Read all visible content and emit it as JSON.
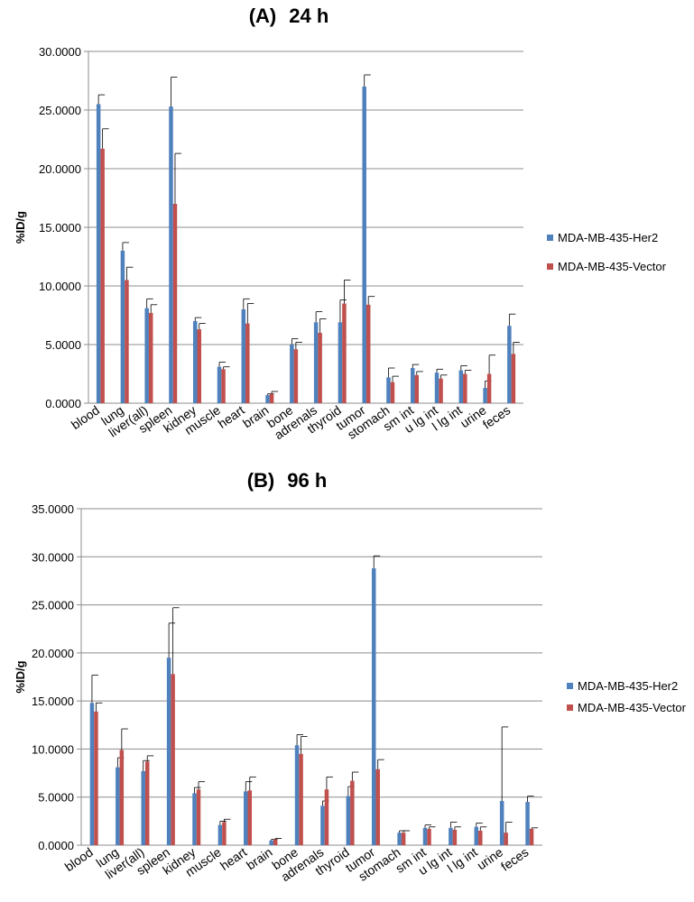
{
  "chart_data": [
    {
      "type": "bar",
      "title_label": "(A)",
      "title_time": "24 h",
      "ylabel": "%ID/g",
      "xlabel": "",
      "ylim": [
        0,
        30
      ],
      "yticks": [
        "0.0000",
        "5.0000",
        "10.0000",
        "15.0000",
        "20.0000",
        "25.0000",
        "30.0000"
      ],
      "grid": true,
      "legend_position": "right",
      "categories": [
        "blood",
        "lung",
        "liver(all)",
        "spleen",
        "kidney",
        "muscle",
        "heart",
        "brain",
        "bone",
        "adrenals",
        "thyroid",
        "tumor",
        "stomach",
        "sm int",
        "u lg int",
        "l lg int",
        "urine",
        "feces"
      ],
      "series": [
        {
          "name": "MDA-MB-435-Her2",
          "color": "#4F81BD",
          "values": [
            25.5,
            13.0,
            8.1,
            25.3,
            7.0,
            3.1,
            8.0,
            0.7,
            5.0,
            6.9,
            6.9,
            27.0,
            2.2,
            3.0,
            2.6,
            2.8,
            1.3,
            6.6
          ],
          "errors": [
            0.8,
            0.7,
            0.8,
            2.5,
            0.3,
            0.4,
            0.9,
            0.1,
            0.5,
            0.9,
            1.9,
            1.0,
            0.8,
            0.3,
            0.3,
            0.4,
            0.6,
            1.0
          ]
        },
        {
          "name": "MDA-MB-435-Vector",
          "color": "#C0504D",
          "values": [
            21.7,
            10.5,
            7.7,
            17.0,
            6.3,
            2.9,
            6.8,
            0.8,
            4.6,
            6.0,
            8.5,
            8.4,
            1.8,
            2.4,
            2.1,
            2.5,
            2.5,
            4.2
          ],
          "errors": [
            1.7,
            1.1,
            0.7,
            4.3,
            0.5,
            0.2,
            1.7,
            0.2,
            0.6,
            1.2,
            2.0,
            0.7,
            0.5,
            0.3,
            0.3,
            0.3,
            1.6,
            1.0
          ]
        }
      ]
    },
    {
      "type": "bar",
      "title_label": "(B)",
      "title_time": "96 h",
      "ylabel": "%ID/g",
      "xlabel": "",
      "ylim": [
        0,
        35
      ],
      "yticks": [
        "0.0000",
        "5.0000",
        "10.0000",
        "15.0000",
        "20.0000",
        "25.0000",
        "30.0000",
        "35.0000"
      ],
      "grid": true,
      "legend_position": "right",
      "categories": [
        "blood",
        "lung",
        "liver(all)",
        "spleen",
        "kidney",
        "muscle",
        "heart",
        "brain",
        "bone",
        "adrenals",
        "thyroid",
        "tumor",
        "stomach",
        "sm int",
        "u lg int",
        "l lg int",
        "urine",
        "feces"
      ],
      "series": [
        {
          "name": "MDA-MB-435-Her2",
          "color": "#4F81BD",
          "values": [
            14.8,
            8.1,
            7.7,
            19.5,
            5.4,
            2.1,
            5.6,
            0.5,
            10.4,
            4.1,
            5.1,
            28.8,
            1.3,
            1.8,
            1.8,
            1.9,
            4.6,
            4.5
          ],
          "errors": [
            2.9,
            1.0,
            1.1,
            3.6,
            0.6,
            0.4,
            1.0,
            0.1,
            1.1,
            0.5,
            1.0,
            1.3,
            0.2,
            0.3,
            0.6,
            0.4,
            7.7,
            0.6
          ]
        },
        {
          "name": "MDA-MB-435-Vector",
          "color": "#C0504D",
          "values": [
            13.9,
            9.9,
            8.7,
            17.8,
            5.8,
            2.4,
            5.7,
            0.6,
            9.5,
            5.8,
            6.7,
            7.9,
            1.3,
            1.7,
            1.6,
            1.5,
            1.3,
            1.7
          ],
          "errors": [
            0.9,
            2.2,
            0.6,
            6.9,
            0.8,
            0.3,
            1.4,
            0.1,
            1.8,
            1.3,
            0.9,
            1.0,
            0.2,
            0.2,
            0.3,
            0.4,
            1.1,
            0.1
          ]
        }
      ]
    }
  ]
}
